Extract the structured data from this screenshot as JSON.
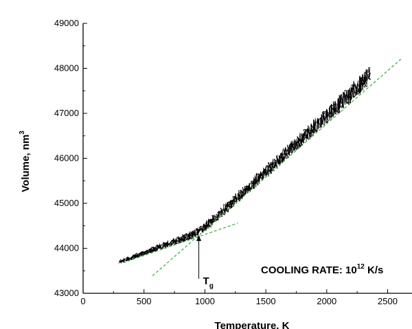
{
  "chart_data": {
    "type": "line",
    "title": "",
    "xlabel": "Temperature, K",
    "ylabel": "Volume, nm",
    "ylabel_sup": "3",
    "xlim": [
      0,
      2700
    ],
    "ylim": [
      43000,
      49000
    ],
    "x_ticks": [
      0,
      500,
      1000,
      1500,
      2000,
      2500
    ],
    "y_ticks": [
      43000,
      44000,
      45000,
      46000,
      47000,
      48000,
      49000
    ],
    "grid": false,
    "legend": "none",
    "series": [
      {
        "color": "#000000",
        "style": "noisy-band",
        "x": [
          300,
          400,
          500,
          600,
          700,
          800,
          900,
          950,
          1000,
          1100,
          1200,
          1300,
          1400,
          1500,
          1600,
          1700,
          1800,
          1900,
          2000,
          2100,
          2200,
          2300,
          2350
        ],
        "y": [
          43700,
          43800,
          43900,
          44000,
          44100,
          44200,
          44300,
          44380,
          44480,
          44700,
          44950,
          45200,
          45450,
          45700,
          45950,
          46200,
          46450,
          46700,
          46950,
          47200,
          47450,
          47700,
          47900
        ]
      }
    ],
    "fit_lines": [
      {
        "color": "#33aa33",
        "style": "dashed",
        "x": [
          330,
          1270
        ],
        "y": [
          43680,
          44560
        ]
      },
      {
        "color": "#33aa33",
        "style": "dashed",
        "x": [
          570,
          2620
        ],
        "y": [
          43390,
          48230
        ]
      }
    ],
    "annotations": {
      "tg_label": "T",
      "tg_sub": "g",
      "tg_x": 950,
      "tg_y": 44300,
      "cooling_text": "COOLING RATE: 10",
      "cooling_sup": "12",
      "cooling_unit": " K/s"
    }
  }
}
